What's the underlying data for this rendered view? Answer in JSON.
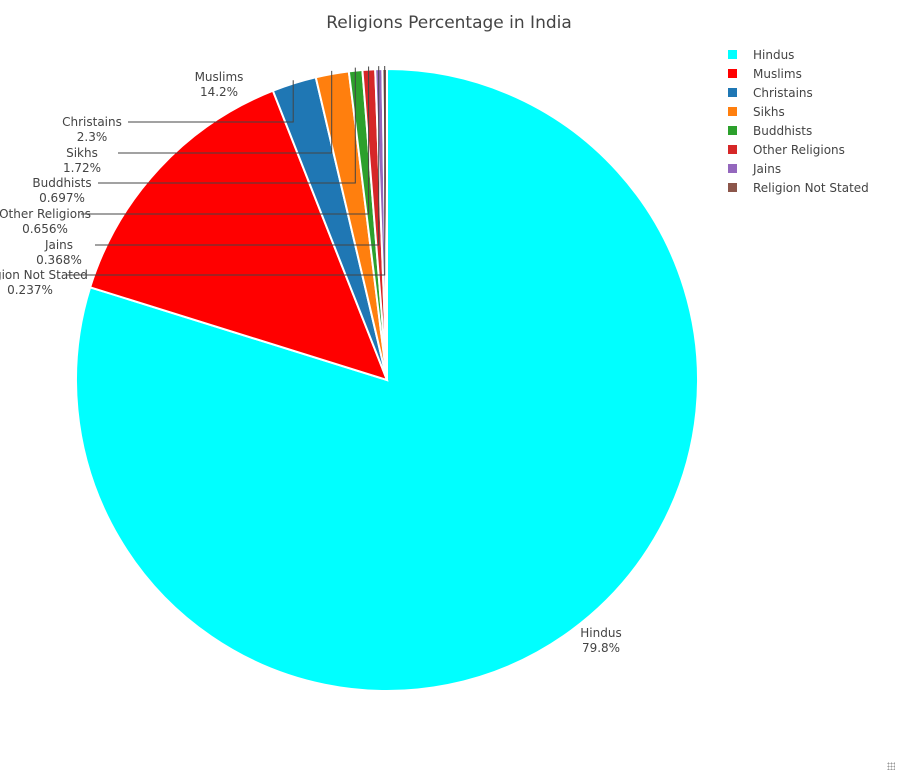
{
  "chart_data": {
    "type": "pie",
    "title": "Religions Percentage in India",
    "labels": [
      "Hindus",
      "Muslims",
      "Christains",
      "Sikhs",
      "Buddhists",
      "Other Religions",
      "Jains",
      "Religion Not Stated"
    ],
    "values": [
      79.8,
      14.2,
      2.3,
      1.72,
      0.697,
      0.656,
      0.368,
      0.237
    ],
    "percent_text": [
      "79.8%",
      "14.2%",
      "2.3%",
      "1.72%",
      "0.697%",
      "0.656%",
      "0.368%",
      "0.237%"
    ],
    "colors": [
      "#00ffff",
      "#ff0000",
      "#1f77b4",
      "#ff7f0e",
      "#2ca02c",
      "#d62728",
      "#9467bd",
      "#8c564b"
    ],
    "legend_position": "top-right",
    "direction": "clockwise",
    "start_angle_deg": 0
  }
}
